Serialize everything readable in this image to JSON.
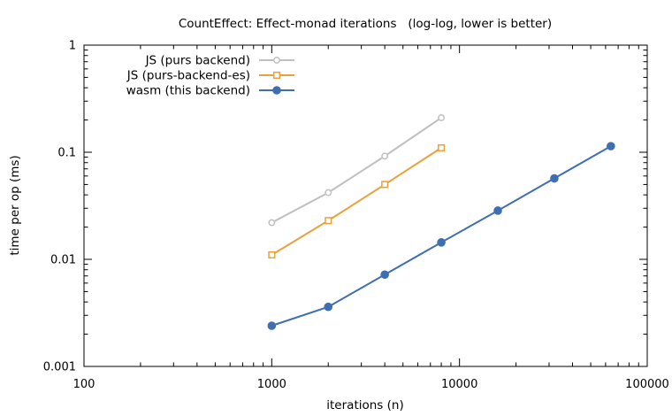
{
  "chart_data": {
    "type": "line",
    "title": "CountEffect: Effect-monad iterations   (log-log, lower is better)",
    "xlabel": "iterations (n)",
    "ylabel": "time per op (ms)",
    "xscale": "log",
    "yscale": "log",
    "xlim": [
      100,
      100000
    ],
    "ylim": [
      0.001,
      1
    ],
    "xticks": [
      100,
      1000,
      10000,
      100000
    ],
    "xtick_labels": [
      "100",
      "1000",
      "10000",
      "100000"
    ],
    "yticks": [
      0.001,
      0.01,
      0.1,
      1
    ],
    "ytick_labels": [
      "0.001",
      "0.01",
      "0.1",
      "1"
    ],
    "grid": false,
    "legend_position": "top-left",
    "series": [
      {
        "name": "JS (purs backend)",
        "color": "#c0c0c0",
        "marker": "open-circle",
        "x": [
          1000,
          2000,
          4000,
          8000
        ],
        "y": [
          0.022,
          0.042,
          0.092,
          0.21
        ]
      },
      {
        "name": "JS (purs-backend-es)",
        "color": "#e9a13b",
        "marker": "open-square",
        "x": [
          1000,
          2000,
          4000,
          8000
        ],
        "y": [
          0.011,
          0.023,
          0.05,
          0.11
        ]
      },
      {
        "name": "wasm (this backend)",
        "color": "#3f6eb3",
        "marker": "filled-circle",
        "x": [
          1000,
          2000,
          4000,
          8000,
          16000,
          32000,
          64000
        ],
        "y": [
          0.0024,
          0.0036,
          0.0072,
          0.0144,
          0.0285,
          0.057,
          0.114
        ]
      }
    ]
  }
}
